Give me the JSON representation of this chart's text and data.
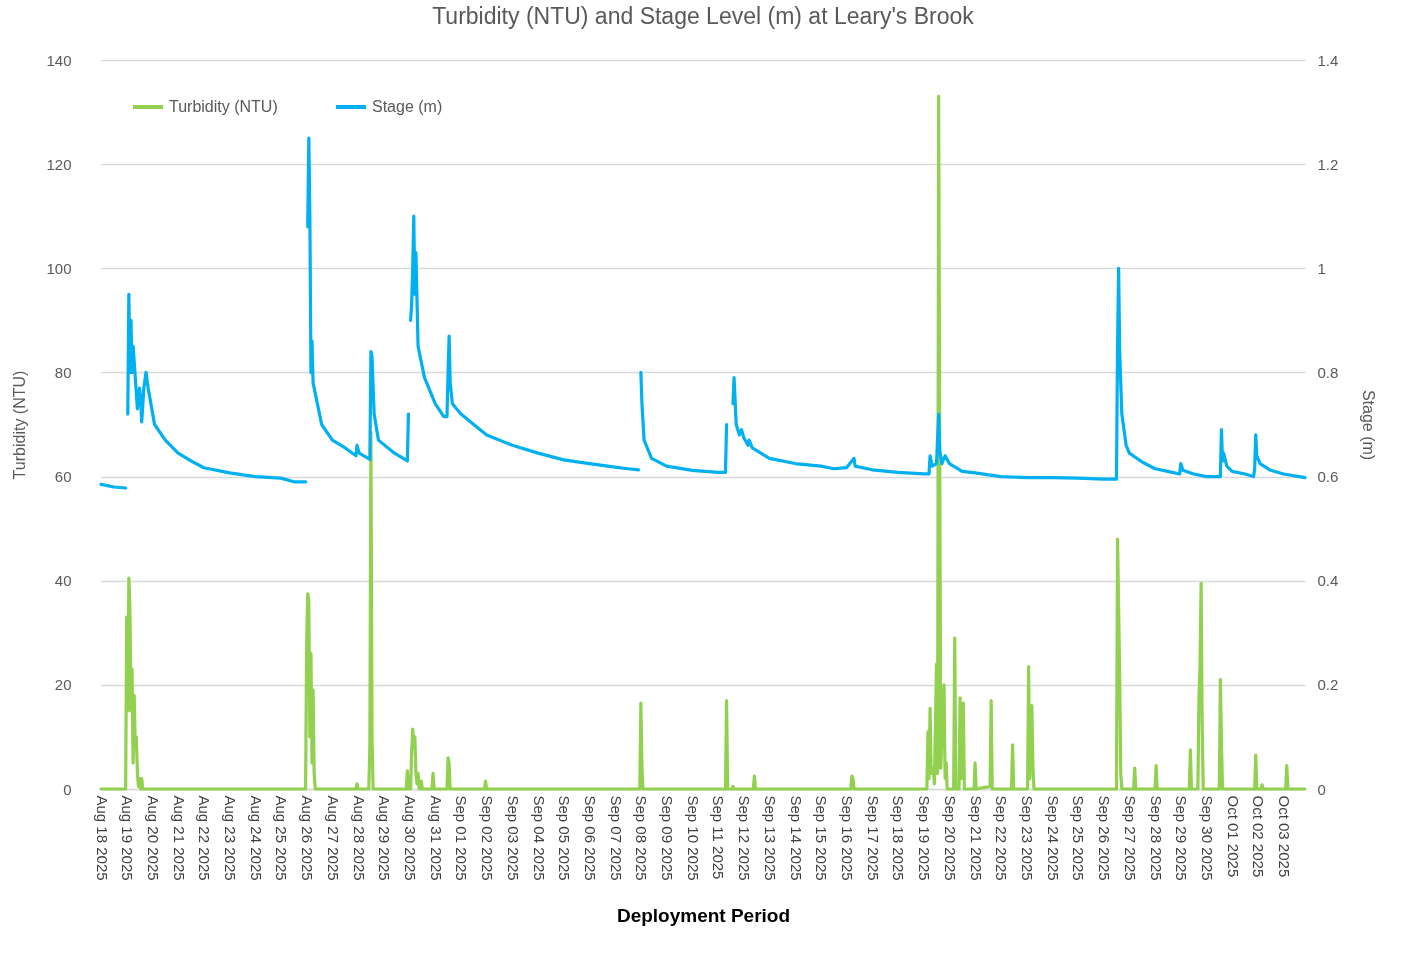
{
  "chart_data": {
    "type": "line",
    "title": "Turbidity (NTU) and Stage Level (m) at Leary's Brook",
    "xlabel": "Deployment Period",
    "ylabel": "Turbidity (NTU)",
    "y2label": "Stage (m)",
    "xlim": [
      "2025-08-18T00:00",
      "2025-10-03T20:00"
    ],
    "xticks": [
      {
        "value": "2025-08-18",
        "label": "Aug 18 2025"
      },
      {
        "value": "2025-08-19",
        "label": "Aug 19 2025"
      },
      {
        "value": "2025-08-20",
        "label": "Aug 20 2025"
      },
      {
        "value": "2025-08-21",
        "label": "Aug 21 2025"
      },
      {
        "value": "2025-08-22",
        "label": "Aug 22 2025"
      },
      {
        "value": "2025-08-23",
        "label": "Aug 23 2025"
      },
      {
        "value": "2025-08-24",
        "label": "Aug 24 2025"
      },
      {
        "value": "2025-08-25",
        "label": "Aug 25 2025"
      },
      {
        "value": "2025-08-26",
        "label": "Aug 26 2025"
      },
      {
        "value": "2025-08-27",
        "label": "Aug 27 2025"
      },
      {
        "value": "2025-08-28",
        "label": "Aug 28 2025"
      },
      {
        "value": "2025-08-29",
        "label": "Aug 29 2025"
      },
      {
        "value": "2025-08-30",
        "label": "Aug 30 2025"
      },
      {
        "value": "2025-08-31",
        "label": "Aug 31 2025"
      },
      {
        "value": "2025-09-01",
        "label": "Sep 01 2025"
      },
      {
        "value": "2025-09-02",
        "label": "Sep 02 2025"
      },
      {
        "value": "2025-09-03",
        "label": "Sep 03 2025"
      },
      {
        "value": "2025-09-04",
        "label": "Sep 04 2025"
      },
      {
        "value": "2025-09-05",
        "label": "Sep 05 2025"
      },
      {
        "value": "2025-09-06",
        "label": "Sep 06 2025"
      },
      {
        "value": "2025-09-07",
        "label": "Sep 07 2025"
      },
      {
        "value": "2025-09-08",
        "label": "Sep 08 2025"
      },
      {
        "value": "2025-09-09",
        "label": "Sep 09 2025"
      },
      {
        "value": "2025-09-10",
        "label": "Sep 10 2025"
      },
      {
        "value": "2025-09-11",
        "label": "Sep 11 2025"
      },
      {
        "value": "2025-09-12",
        "label": "Sep 12 2025"
      },
      {
        "value": "2025-09-13",
        "label": "Sep 13 2025"
      },
      {
        "value": "2025-09-14",
        "label": "Sep 14 2025"
      },
      {
        "value": "2025-09-15",
        "label": "Sep 15 2025"
      },
      {
        "value": "2025-09-16",
        "label": "Sep 16 2025"
      },
      {
        "value": "2025-09-17",
        "label": "Sep 17 2025"
      },
      {
        "value": "2025-09-18",
        "label": "Sep 18 2025"
      },
      {
        "value": "2025-09-19",
        "label": "Sep 19 2025"
      },
      {
        "value": "2025-09-20",
        "label": "Sep 20 2025"
      },
      {
        "value": "2025-09-21",
        "label": "Sep 21 2025"
      },
      {
        "value": "2025-09-22",
        "label": "Sep 22 2025"
      },
      {
        "value": "2025-09-23",
        "label": "Sep 23 2025"
      },
      {
        "value": "2025-09-24",
        "label": "Sep 24 2025"
      },
      {
        "value": "2025-09-25",
        "label": "Sep 25 2025"
      },
      {
        "value": "2025-09-26",
        "label": "Sep 26 2025"
      },
      {
        "value": "2025-09-27",
        "label": "Sep 27 2025"
      },
      {
        "value": "2025-09-28",
        "label": "Sep 28 2025"
      },
      {
        "value": "2025-09-29",
        "label": "Sep 29 2025"
      },
      {
        "value": "2025-09-30",
        "label": "Sep 30 2025"
      },
      {
        "value": "2025-10-01",
        "label": "Oct 01 2025"
      },
      {
        "value": "2025-10-02",
        "label": "Oct 02 2025"
      },
      {
        "value": "2025-10-03",
        "label": "Oct 03 2025"
      }
    ],
    "ylim": [
      0,
      140
    ],
    "yticks": [
      0,
      20,
      40,
      60,
      80,
      100,
      120,
      140
    ],
    "y2lim": [
      0,
      1.4
    ],
    "y2ticks": [
      0,
      0.2,
      0.4,
      0.6,
      0.8,
      1,
      1.2,
      1.4
    ],
    "grid": "y",
    "legend": "top left",
    "marker": "none",
    "line_style": "solid",
    "series": [
      {
        "name": "Turbidity (NTU)",
        "color": "#92d050",
        "x": [
          "2025-08-18T00:00",
          "2025-08-18T23:00",
          "2025-08-19T00:00",
          "2025-08-19T01:00",
          "2025-08-19T02:00",
          "2025-08-19T03:00",
          "2025-08-19T04:00",
          "2025-08-19T05:00",
          "2025-08-19T06:00",
          "2025-08-19T07:00",
          "2025-08-19T08:00",
          "2025-08-19T09:00",
          "2025-08-19T10:00",
          "2025-08-19T11:00",
          "2025-08-19T12:00",
          "2025-08-19T13:00",
          "2025-08-19T14:00",
          "2025-08-19T15:00",
          "2025-08-25T23:00",
          "2025-08-26T00:00",
          "2025-08-26T01:00",
          "2025-08-26T02:00",
          "2025-08-26T03:00",
          "2025-08-26T04:00",
          "2025-08-26T05:00",
          "2025-08-26T06:00",
          "2025-08-26T07:00",
          "2025-08-26T08:00",
          "2025-08-27T22:00",
          "2025-08-27T23:00",
          "2025-08-28T00:00",
          "2025-08-28T10:00",
          "2025-08-28T11:00",
          "2025-08-28T12:00",
          "2025-08-28T13:00",
          "2025-08-28T14:00",
          "2025-08-29T21:00",
          "2025-08-29T22:00",
          "2025-08-29T23:00",
          "2025-08-30T01:00",
          "2025-08-30T02:00",
          "2025-08-30T03:00",
          "2025-08-30T04:00",
          "2025-08-30T05:00",
          "2025-08-30T06:00",
          "2025-08-30T07:00",
          "2025-08-30T08:00",
          "2025-08-30T09:00",
          "2025-08-30T10:00",
          "2025-08-30T11:00",
          "2025-08-30T12:00",
          "2025-08-30T21:00",
          "2025-08-30T22:00",
          "2025-08-30T23:00",
          "2025-08-31T11:00",
          "2025-08-31T12:00",
          "2025-08-31T13:00",
          "2025-08-31T14:00",
          "2025-09-01T22:00",
          "2025-09-01T23:00",
          "2025-09-02T00:00",
          "2025-09-07T23:00",
          "2025-09-08T00:00",
          "2025-09-08T01:00",
          "2025-09-08T02:00",
          "2025-09-11T07:00",
          "2025-09-11T08:00",
          "2025-09-11T09:00",
          "2025-09-11T13:00",
          "2025-09-11T14:00",
          "2025-09-11T15:00",
          "2025-09-12T09:00",
          "2025-09-12T10:00",
          "2025-09-12T11:00",
          "2025-09-16T04:00",
          "2025-09-16T05:00",
          "2025-09-16T06:00",
          "2025-09-16T07:00",
          "2025-09-19T03:00",
          "2025-09-19T04:00",
          "2025-09-19T05:00",
          "2025-09-19T06:00",
          "2025-09-19T07:00",
          "2025-09-19T09:00",
          "2025-09-19T10:00",
          "2025-09-19T12:00",
          "2025-09-19T13:00",
          "2025-09-19T14:00",
          "2025-09-19T15:00",
          "2025-09-19T16:00",
          "2025-09-19T17:00",
          "2025-09-19T19:00",
          "2025-09-19T20:00",
          "2025-09-19T21:00",
          "2025-09-19T22:00",
          "2025-09-20T04:00",
          "2025-09-20T05:00",
          "2025-09-20T06:00",
          "2025-09-20T09:00",
          "2025-09-20T10:00",
          "2025-09-20T11:00",
          "2025-09-20T13:00",
          "2025-09-20T14:00",
          "2025-09-20T23:00",
          "2025-09-21T00:00",
          "2025-09-21T01:00",
          "2025-09-21T14:00",
          "2025-09-21T15:00",
          "2025-09-21T16:00",
          "2025-09-22T10:00",
          "2025-09-22T11:00",
          "2025-09-22T12:00",
          "2025-09-23T01:00",
          "2025-09-23T02:00",
          "2025-09-23T03:00",
          "2025-09-23T05:00",
          "2025-09-23T06:00",
          "2025-09-23T07:00",
          "2025-09-26T12:00",
          "2025-09-26T13:00",
          "2025-09-26T14:00",
          "2025-09-26T15:00",
          "2025-09-26T16:00",
          "2025-09-26T17:00",
          "2025-09-27T04:00",
          "2025-09-27T05:00",
          "2025-09-27T06:00",
          "2025-09-28T00:00",
          "2025-09-28T01:00",
          "2025-09-28T02:00",
          "2025-09-29T08:00",
          "2025-09-29T09:00",
          "2025-09-29T10:00",
          "2025-09-29T16:00",
          "2025-09-29T17:00",
          "2025-09-29T18:00",
          "2025-09-29T19:00",
          "2025-09-29T20:00",
          "2025-09-29T21:00",
          "2025-09-30T12:00",
          "2025-09-30T13:00",
          "2025-09-30T14:00",
          "2025-09-30T15:00",
          "2025-10-01T21:00",
          "2025-10-01T22:00",
          "2025-10-01T23:00",
          "2025-10-02T03:00",
          "2025-10-02T04:00",
          "2025-10-02T05:00",
          "2025-10-03T02:00",
          "2025-10-03T03:00",
          "2025-10-03T04:00",
          "2025-10-03T20:00"
        ],
        "values": [
          0,
          0,
          33,
          15,
          40.5,
          35,
          15,
          23,
          5,
          18,
          8,
          10,
          3,
          0.5,
          2,
          0,
          2,
          0,
          0,
          28,
          37.5,
          36,
          10,
          26,
          5,
          19,
          3,
          0,
          0,
          1,
          0,
          0,
          8.5,
          68.5,
          10,
          0,
          0,
          3.5,
          0,
          0,
          7,
          11.5,
          8,
          10,
          3,
          1,
          3,
          0,
          0,
          1.5,
          0,
          0,
          3,
          0,
          0,
          6,
          5,
          0,
          0,
          1.5,
          0,
          0,
          16.5,
          4,
          0,
          0,
          17,
          0,
          0,
          0.5,
          0,
          0,
          2.5,
          0,
          0,
          2.5,
          2,
          0,
          0,
          11,
          2,
          15.5,
          3,
          4,
          1,
          24,
          3,
          133,
          63,
          4,
          10,
          20,
          2,
          5,
          0,
          0,
          29,
          0,
          0,
          17.5,
          2,
          16.5,
          0,
          0,
          5,
          0,
          0.5,
          17,
          0,
          0,
          8.5,
          0,
          0,
          23.5,
          2,
          16,
          4,
          0,
          0,
          48,
          35,
          21.5,
          3,
          0,
          0,
          4,
          0,
          0,
          4.5,
          0,
          0,
          7.5,
          0,
          0,
          17.5,
          23.5,
          39.5,
          12,
          0,
          0,
          21,
          9,
          0,
          0,
          6.5,
          0,
          0,
          0.8,
          0,
          0,
          4.5,
          0,
          0
        ]
      },
      {
        "name": "Stage (m)",
        "color": "#00b0f0",
        "axis": "y2",
        "x": [
          "2025-08-18T00:00",
          "2025-08-18T12:00",
          "2025-08-18T23:00",
          "2025-08-19T00:00",
          "2025-08-19T01:00",
          "2025-08-19T02:00",
          "2025-08-19T03:00",
          "2025-08-19T04:00",
          "2025-08-19T05:00",
          "2025-08-19T06:00",
          "2025-08-19T08:00",
          "2025-08-19T10:00",
          "2025-08-19T12:00",
          "2025-08-19T13:00",
          "2025-08-19T14:00",
          "2025-08-19T16:00",
          "2025-08-19T18:00",
          "2025-08-19T20:00",
          "2025-08-20T02:00",
          "2025-08-20T12:00",
          "2025-08-21T00:00",
          "2025-08-21T12:00",
          "2025-08-22T00:00",
          "2025-08-23T00:00",
          "2025-08-24T00:00",
          "2025-08-25T00:00",
          "2025-08-25T12:00",
          "2025-08-25T23:00",
          "2025-08-26T00:00",
          "2025-08-26T01:00",
          "2025-08-26T02:00",
          "2025-08-26T03:00",
          "2025-08-26T04:00",
          "2025-08-26T05:00",
          "2025-08-26T06:00",
          "2025-08-26T14:00",
          "2025-08-27T00:00",
          "2025-08-27T12:00",
          "2025-08-27T22:00",
          "2025-08-27T23:00",
          "2025-08-28T01:00",
          "2025-08-28T11:00",
          "2025-08-28T12:00",
          "2025-08-28T13:00",
          "2025-08-28T15:00",
          "2025-08-28T19:00",
          "2025-08-29T10:00",
          "2025-08-29T22:00",
          "2025-08-29T23:00",
          "2025-08-30T00:00",
          "2025-08-30T01:00",
          "2025-08-30T02:00",
          "2025-08-30T03:00",
          "2025-08-30T04:00",
          "2025-08-30T05:00",
          "2025-08-30T06:00",
          "2025-08-30T08:00",
          "2025-08-30T14:00",
          "2025-08-31T00:00",
          "2025-08-31T08:00",
          "2025-08-31T11:00",
          "2025-08-31T12:00",
          "2025-08-31T13:00",
          "2025-08-31T14:00",
          "2025-08-31T16:00",
          "2025-09-01T00:00",
          "2025-09-01T12:00",
          "2025-09-02T00:00",
          "2025-09-03T00:00",
          "2025-09-04T00:00",
          "2025-09-05T00:00",
          "2025-09-06T00:00",
          "2025-09-07T00:00",
          "2025-09-07T12:00",
          "2025-09-07T22:00",
          "2025-09-07T23:00",
          "2025-09-08T00:00",
          "2025-09-08T01:00",
          "2025-09-08T03:00",
          "2025-09-08T10:00",
          "2025-09-09T00:00",
          "2025-09-10T00:00",
          "2025-09-11T00:00",
          "2025-09-11T07:00",
          "2025-09-11T08:00",
          "2025-09-11T09:00",
          "2025-09-11T14:00",
          "2025-09-11T15:00",
          "2025-09-11T17:00",
          "2025-09-11T20:00",
          "2025-09-11T22:00",
          "2025-09-12T00:00",
          "2025-09-12T04:00",
          "2025-09-12T05:00",
          "2025-09-12T08:00",
          "2025-09-12T16:00",
          "2025-09-13T00:00",
          "2025-09-14T00:00",
          "2025-09-15T00:00",
          "2025-09-15T12:00",
          "2025-09-16T00:00",
          "2025-09-16T07:00",
          "2025-09-16T08:00",
          "2025-09-17T00:00",
          "2025-09-18T00:00",
          "2025-09-19T00:00",
          "2025-09-19T05:00",
          "2025-09-19T06:00",
          "2025-09-19T08:00",
          "2025-09-19T12:00",
          "2025-09-19T14:00",
          "2025-09-19T15:00",
          "2025-09-19T17:00",
          "2025-09-19T20:00",
          "2025-09-20T00:00",
          "2025-09-20T12:00",
          "2025-09-21T00:00",
          "2025-09-22T00:00",
          "2025-09-23T00:00",
          "2025-09-24T00:00",
          "2025-09-25T00:00",
          "2025-09-26T00:00",
          "2025-09-26T12:00",
          "2025-09-26T13:00",
          "2025-09-26T14:00",
          "2025-09-26T15:00",
          "2025-09-26T17:00",
          "2025-09-26T21:00",
          "2025-09-27T00:00",
          "2025-09-27T12:00",
          "2025-09-28T00:00",
          "2025-09-28T12:00",
          "2025-09-28T23:00",
          "2025-09-29T00:00",
          "2025-09-29T02:00",
          "2025-09-29T12:00",
          "2025-09-30T00:00",
          "2025-09-30T13:00",
          "2025-09-30T14:00",
          "2025-09-30T15:00",
          "2025-09-30T16:00",
          "2025-09-30T19:00",
          "2025-10-01T00:00",
          "2025-10-01T12:00",
          "2025-10-01T20:00",
          "2025-10-01T21:00",
          "2025-10-01T22:00",
          "2025-10-01T23:00",
          "2025-10-02T00:00",
          "2025-10-02T02:00",
          "2025-10-02T12:00",
          "2025-10-03T00:00",
          "2025-10-03T20:00"
        ],
        "values": [
          0.585,
          0.58,
          0.578,
          null,
          0.72,
          0.95,
          0.8,
          0.9,
          0.8,
          0.85,
          0.79,
          0.73,
          0.77,
          0.75,
          0.705,
          0.77,
          0.8,
          0.77,
          0.7,
          0.67,
          0.645,
          0.63,
          0.617,
          0.607,
          0.6,
          0.597,
          0.59,
          0.59,
          null,
          1.08,
          1.25,
          1.1,
          0.8,
          0.86,
          0.78,
          0.7,
          0.67,
          0.655,
          0.64,
          0.66,
          0.645,
          0.633,
          0.84,
          0.83,
          0.72,
          0.67,
          0.645,
          0.63,
          0.72,
          null,
          0.9,
          0.93,
          1,
          1.1,
          0.95,
          1.03,
          0.85,
          0.79,
          0.74,
          0.715,
          0.715,
          0.8,
          0.87,
          0.78,
          0.74,
          0.72,
          0.7,
          0.68,
          0.66,
          0.645,
          0.632,
          0.625,
          0.618,
          0.615,
          0.613,
          null,
          0.8,
          0.74,
          0.67,
          0.635,
          0.62,
          0.612,
          0.608,
          0.608,
          0.7,
          null,
          0.74,
          0.79,
          0.7,
          0.68,
          0.69,
          0.675,
          0.66,
          0.67,
          0.655,
          0.645,
          0.635,
          0.625,
          0.62,
          0.615,
          0.617,
          0.635,
          0.62,
          0.613,
          0.608,
          0.605,
          0.605,
          0.64,
          0.62,
          0.625,
          0.72,
          0.65,
          0.625,
          0.64,
          0.625,
          0.61,
          0.607,
          0.6,
          0.598,
          0.598,
          0.597,
          0.595,
          0.595,
          0.85,
          1,
          0.84,
          0.72,
          0.66,
          0.645,
          0.628,
          0.615,
          0.61,
          0.605,
          0.625,
          0.612,
          0.605,
          0.6,
          0.6,
          0.69,
          0.63,
          0.645,
          0.62,
          0.61,
          0.605,
          0.6,
          0.615,
          0.68,
          0.64,
          0.635,
          0.625,
          0.612,
          0.605,
          0.598
        ]
      }
    ]
  }
}
